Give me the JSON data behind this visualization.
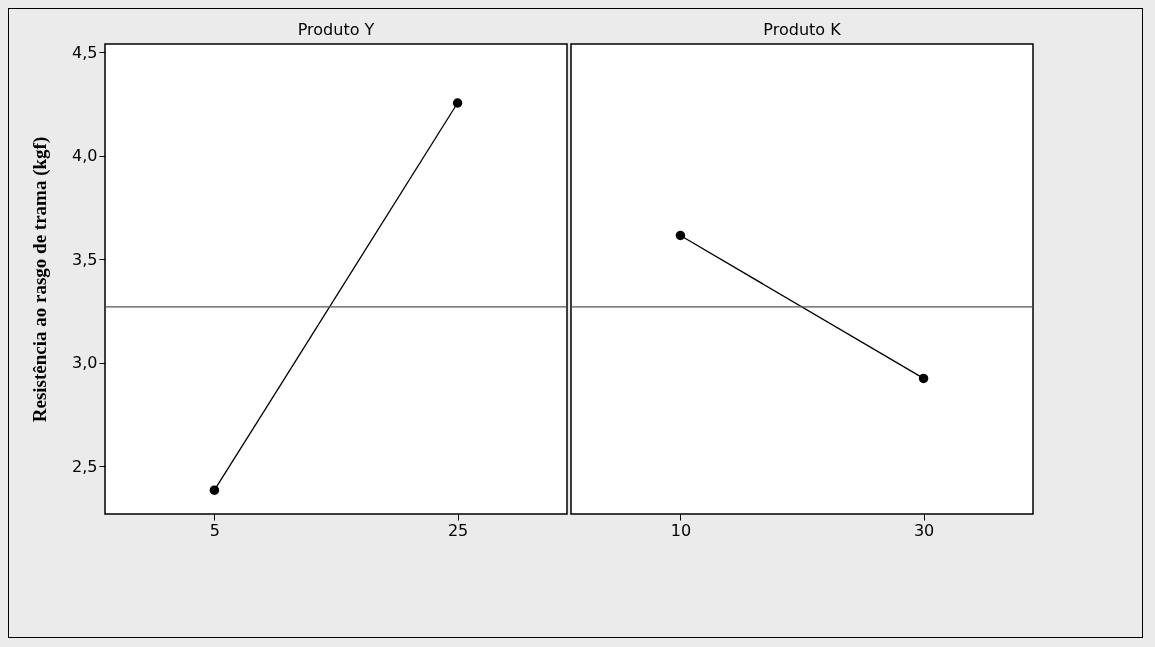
{
  "chart_data": [
    {
      "type": "line",
      "title": "Produto Y",
      "ylabel": "Resistência ao rasgo de trama (kgf)",
      "categories": [
        "5",
        "25"
      ],
      "values": [
        2.385,
        4.255
      ],
      "color": "#000000",
      "marker": "circle",
      "ylim": [
        2.27,
        4.54
      ],
      "yticks": [
        {
          "value": 2.5,
          "label": "2,5"
        },
        {
          "value": 3.0,
          "label": "3,0"
        },
        {
          "value": 3.5,
          "label": "3,5"
        },
        {
          "value": 4.0,
          "label": "4,0"
        },
        {
          "value": 4.5,
          "label": "4,5"
        }
      ],
      "ref_lines": [
        {
          "axis": "y",
          "value": 3.27,
          "color": "#555555"
        }
      ]
    },
    {
      "type": "line",
      "title": "Produto K",
      "categories": [
        "10",
        "30"
      ],
      "values": [
        3.615,
        2.925
      ],
      "color": "#000000",
      "marker": "circle",
      "ylim": [
        2.27,
        4.54
      ],
      "tick_labels": "x",
      "ref_lines": [
        {
          "axis": "y",
          "value": 3.27,
          "color": "#555555"
        }
      ]
    }
  ]
}
